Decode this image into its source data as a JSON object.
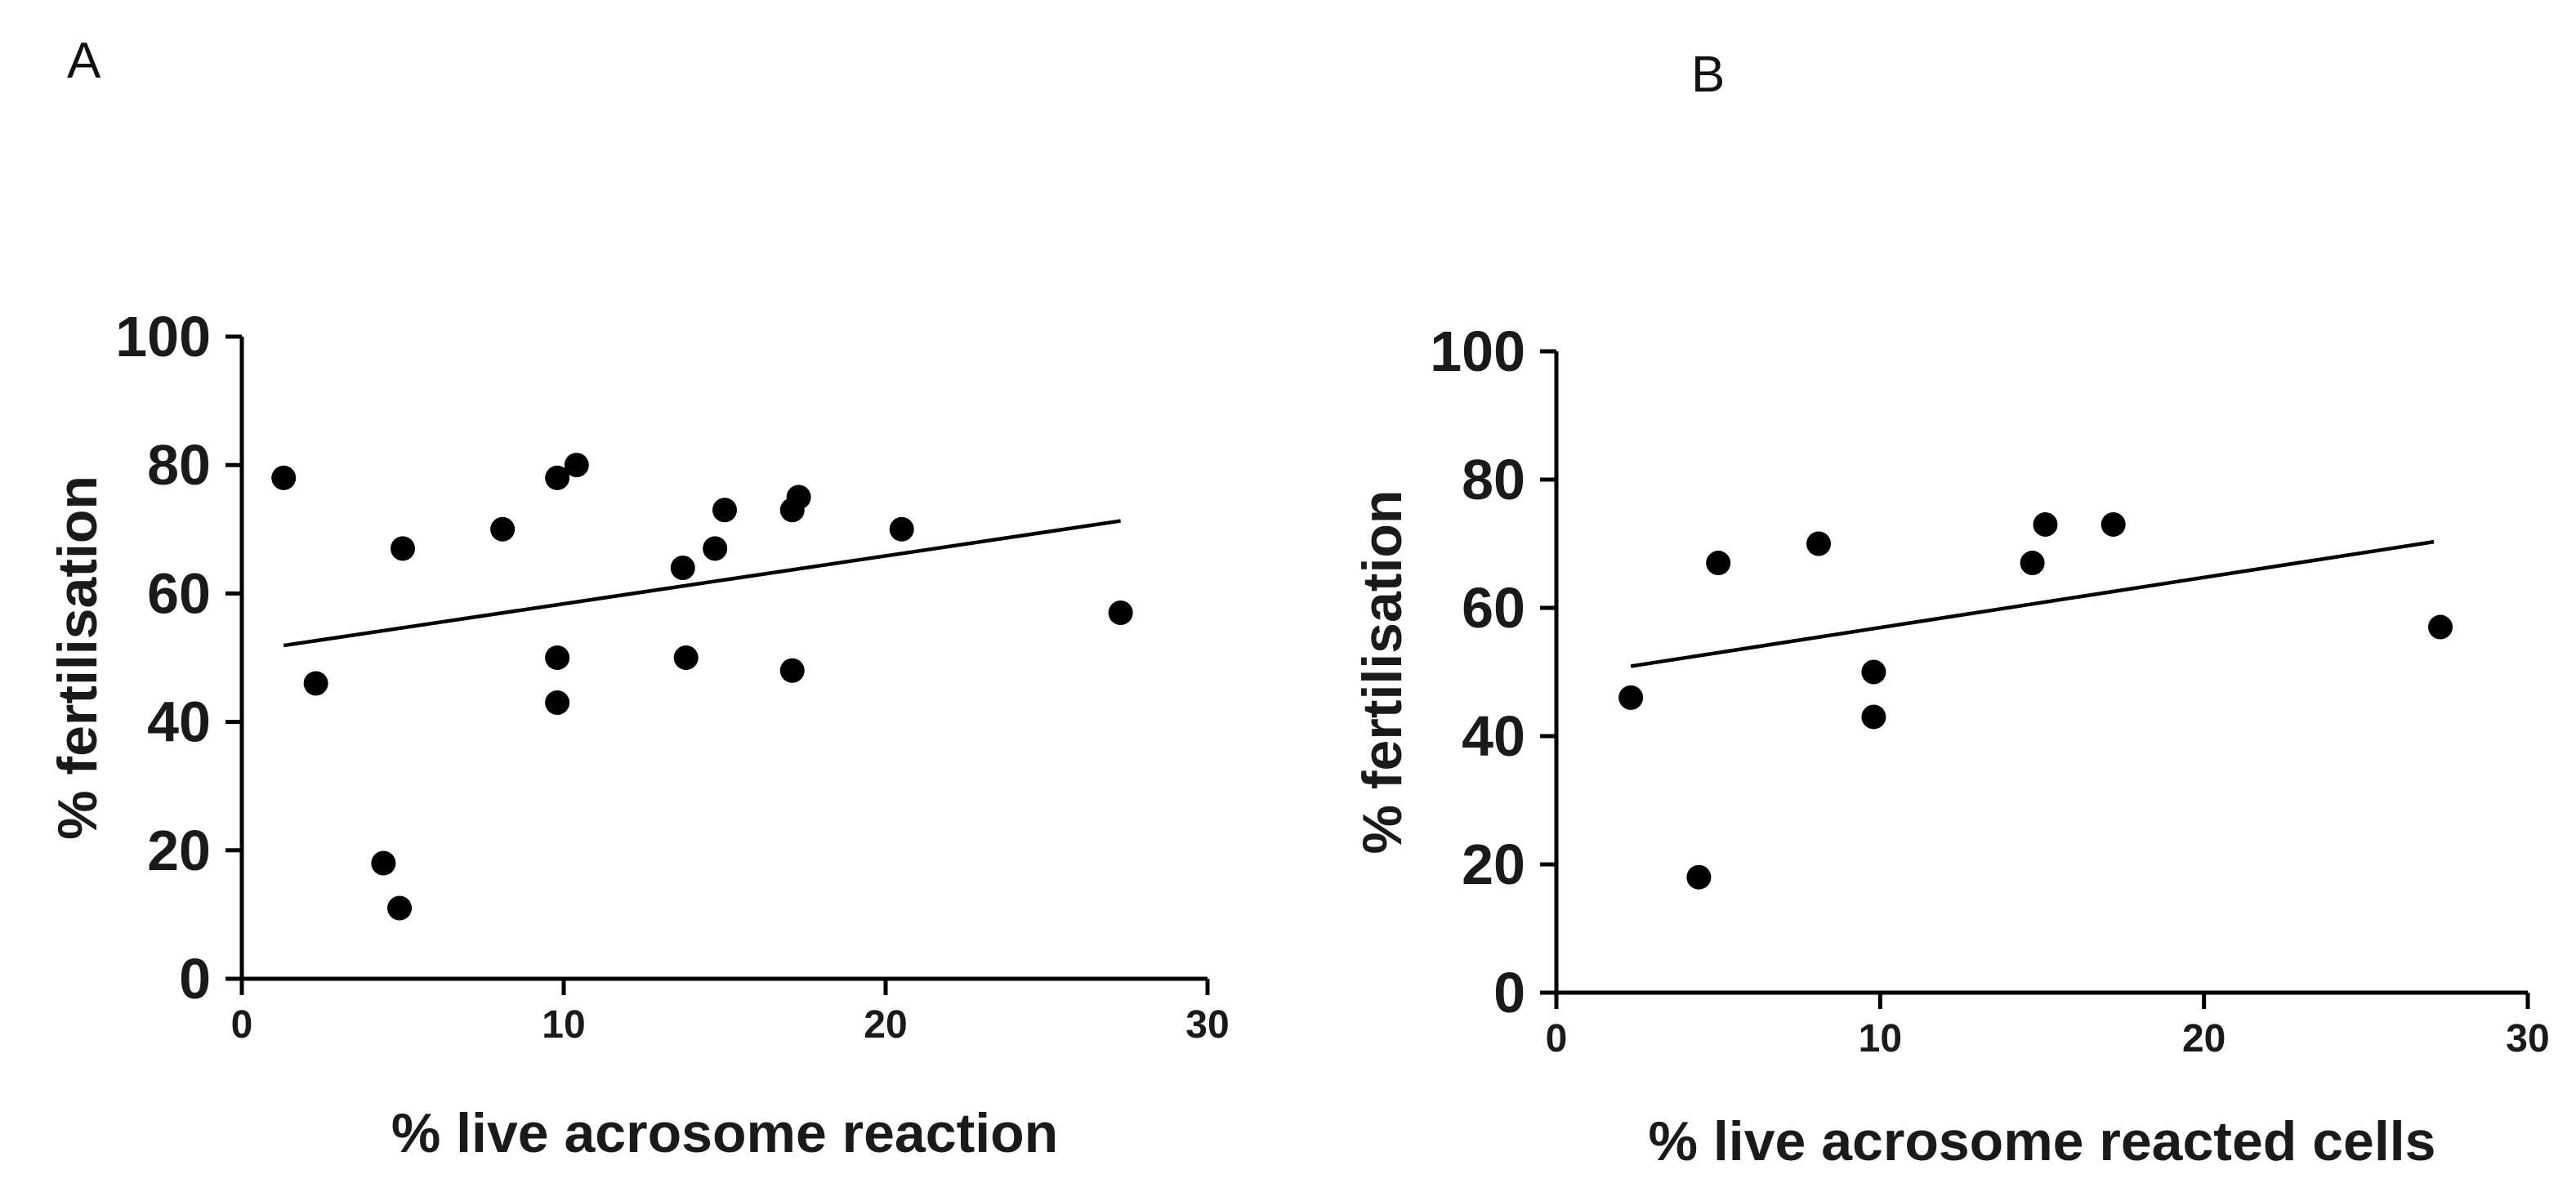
{
  "chart_data": [
    {
      "type": "scatter",
      "panel_label": "A",
      "title": "",
      "xlabel": "% live acrosome reaction",
      "ylabel": "% fertilisation",
      "xlim": [
        0,
        30
      ],
      "ylim": [
        0,
        100
      ],
      "xticks": [
        0,
        10,
        20,
        30
      ],
      "yticks": [
        0,
        20,
        40,
        60,
        80,
        100
      ],
      "points": [
        {
          "x": 1.3,
          "y": 78
        },
        {
          "x": 2.3,
          "y": 46
        },
        {
          "x": 4.4,
          "y": 18
        },
        {
          "x": 4.9,
          "y": 11
        },
        {
          "x": 5.0,
          "y": 67
        },
        {
          "x": 8.1,
          "y": 70
        },
        {
          "x": 9.8,
          "y": 78
        },
        {
          "x": 9.8,
          "y": 50
        },
        {
          "x": 9.8,
          "y": 43
        },
        {
          "x": 10.4,
          "y": 80
        },
        {
          "x": 13.7,
          "y": 64
        },
        {
          "x": 13.8,
          "y": 50
        },
        {
          "x": 14.7,
          "y": 67
        },
        {
          "x": 15.0,
          "y": 73
        },
        {
          "x": 17.1,
          "y": 73
        },
        {
          "x": 17.3,
          "y": 75
        },
        {
          "x": 17.1,
          "y": 48
        },
        {
          "x": 20.5,
          "y": 70
        },
        {
          "x": 27.3,
          "y": 57
        }
      ],
      "fit_line": {
        "x": [
          1.3,
          27.3
        ],
        "y": [
          51.9,
          71.3
        ]
      },
      "grid": false
    },
    {
      "type": "scatter",
      "panel_label": "B",
      "title": "",
      "xlabel": "% live acrosome reacted cells",
      "ylabel": "% fertilisation",
      "xlim": [
        0,
        30
      ],
      "ylim": [
        0,
        100
      ],
      "xticks": [
        0,
        10,
        20,
        30
      ],
      "yticks": [
        0,
        20,
        40,
        60,
        80,
        100
      ],
      "points": [
        {
          "x": 2.3,
          "y": 46
        },
        {
          "x": 4.4,
          "y": 18
        },
        {
          "x": 5.0,
          "y": 67
        },
        {
          "x": 8.1,
          "y": 70
        },
        {
          "x": 9.8,
          "y": 50
        },
        {
          "x": 9.8,
          "y": 43
        },
        {
          "x": 14.7,
          "y": 67
        },
        {
          "x": 15.1,
          "y": 73
        },
        {
          "x": 17.2,
          "y": 73
        },
        {
          "x": 27.3,
          "y": 57
        }
      ],
      "fit_line": {
        "x": [
          2.3,
          27.1
        ],
        "y": [
          50.9,
          70.3
        ]
      },
      "grid": false
    }
  ]
}
